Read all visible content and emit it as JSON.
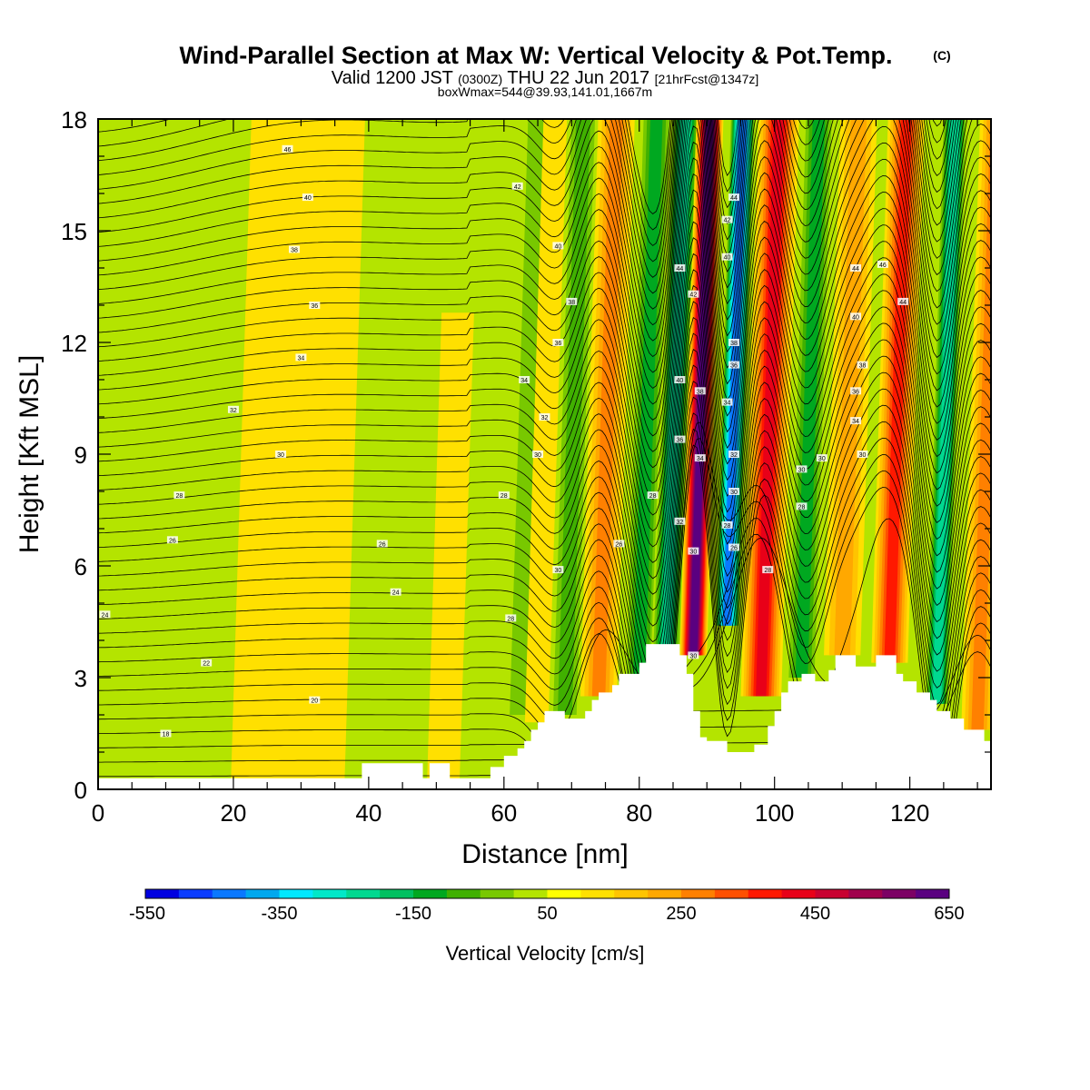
{
  "chart_data": {
    "type": "heatmap",
    "title": "Wind-Parallel Section at Max W: Vertical Velocity & Pot.Temp.",
    "title_mark": "(C)",
    "subtitle": {
      "valid_prefix": "Valid 1200 JST",
      "utc": "(0300Z)",
      "date": "THU 22 Jun 2017",
      "forecast": "[21hrFcst@1347z]"
    },
    "info_line": "boxWmax=544@39.93,141.01,1667m",
    "xlabel": "Distance [nm]",
    "ylabel": "Height [Kft MSL]",
    "xlim": [
      0,
      132
    ],
    "ylim": [
      0,
      18
    ],
    "x_ticks": [
      "0",
      "20",
      "40",
      "60",
      "80",
      "100",
      "120"
    ],
    "y_ticks": [
      "0",
      "3",
      "6",
      "9",
      "12",
      "15",
      "18"
    ],
    "colorbar": {
      "label": "Vertical Velocity [cm/s]",
      "tick_labels": [
        "-550",
        "-350",
        "-150",
        "50",
        "250",
        "450",
        "650"
      ],
      "colors": [
        "#0000e0",
        "#0a3cff",
        "#0a78ff",
        "#00a8ee",
        "#00e8ff",
        "#00e8c8",
        "#00d890",
        "#00c060",
        "#00a820",
        "#40b000",
        "#78c800",
        "#b4e400",
        "#ffff00",
        "#ffe000",
        "#ffc400",
        "#ffa800",
        "#ff8000",
        "#ff5000",
        "#ff1800",
        "#e80018",
        "#c80030",
        "#a0004c",
        "#7c0064",
        "#5a0080"
      ]
    },
    "ground_profile": [
      [
        0,
        0.3
      ],
      [
        1,
        0.3
      ],
      [
        2,
        0.3
      ],
      [
        39,
        0.3
      ],
      [
        39,
        0.7
      ],
      [
        40,
        0.7
      ],
      [
        48,
        0.7
      ],
      [
        48,
        0.3
      ],
      [
        49,
        0.3
      ],
      [
        49,
        0.7
      ],
      [
        52,
        0.7
      ],
      [
        52,
        0.3
      ],
      [
        58,
        0.3
      ],
      [
        58,
        0.6
      ],
      [
        60,
        0.6
      ],
      [
        60,
        0.9
      ],
      [
        62,
        0.9
      ],
      [
        62,
        1.1
      ],
      [
        63,
        1.1
      ],
      [
        63,
        1.3
      ],
      [
        64,
        1.3
      ],
      [
        64,
        1.6
      ],
      [
        65,
        1.6
      ],
      [
        65,
        1.8
      ],
      [
        66,
        1.8
      ],
      [
        66,
        2.1
      ],
      [
        69,
        2.1
      ],
      [
        69,
        1.9
      ],
      [
        72,
        1.9
      ],
      [
        72,
        2.1
      ],
      [
        73,
        2.1
      ],
      [
        73,
        2.4
      ],
      [
        74,
        2.4
      ],
      [
        74,
        2.6
      ],
      [
        76,
        2.6
      ],
      [
        76,
        2.8
      ],
      [
        77,
        2.8
      ],
      [
        77,
        3.1
      ],
      [
        80,
        3.1
      ],
      [
        80,
        3.4
      ],
      [
        81,
        3.4
      ],
      [
        81,
        3.9
      ],
      [
        86,
        3.9
      ],
      [
        86,
        3.6
      ],
      [
        87,
        3.6
      ],
      [
        87,
        3.1
      ],
      [
        88,
        3.1
      ],
      [
        88,
        2.1
      ],
      [
        89,
        2.1
      ],
      [
        89,
        1.4
      ],
      [
        90,
        1.4
      ],
      [
        90,
        1.3
      ],
      [
        93,
        1.3
      ],
      [
        93,
        1.0
      ],
      [
        97,
        1.0
      ],
      [
        97,
        1.2
      ],
      [
        99,
        1.2
      ],
      [
        99,
        1.7
      ],
      [
        100,
        1.7
      ],
      [
        100,
        2.1
      ],
      [
        101,
        2.1
      ],
      [
        101,
        2.6
      ],
      [
        102,
        2.6
      ],
      [
        102,
        2.9
      ],
      [
        104,
        2.9
      ],
      [
        104,
        3.1
      ],
      [
        106,
        3.1
      ],
      [
        106,
        2.9
      ],
      [
        108,
        2.9
      ],
      [
        108,
        3.2
      ],
      [
        109,
        3.2
      ],
      [
        109,
        3.6
      ],
      [
        112,
        3.6
      ],
      [
        112,
        3.3
      ],
      [
        115,
        3.3
      ],
      [
        115,
        3.6
      ],
      [
        118,
        3.6
      ],
      [
        118,
        3.1
      ],
      [
        119,
        3.1
      ],
      [
        119,
        2.9
      ],
      [
        121,
        2.9
      ],
      [
        121,
        2.6
      ],
      [
        123,
        2.6
      ],
      [
        123,
        2.4
      ],
      [
        124,
        2.4
      ],
      [
        124,
        2.1
      ],
      [
        126,
        2.1
      ],
      [
        126,
        1.9
      ],
      [
        128,
        1.9
      ],
      [
        128,
        1.6
      ],
      [
        131,
        1.6
      ],
      [
        131,
        1.3
      ],
      [
        132,
        1.3
      ]
    ],
    "vertical_velocity_features": [
      {
        "x": 28,
        "w": 8,
        "value": 20,
        "bottom": 0,
        "top": 18
      },
      {
        "x": 41,
        "w": 3,
        "value": -40,
        "bottom": 0,
        "top": 18
      },
      {
        "x": 51,
        "w": 2,
        "value": 40,
        "bottom": 0,
        "top": 12.8
      },
      {
        "x": 62,
        "w": 1.5,
        "value": -100,
        "bottom": 2,
        "top": 18
      },
      {
        "x": 65,
        "w": 1.5,
        "value": 70,
        "bottom": 1.8,
        "top": 18
      },
      {
        "x": 69,
        "w": 2,
        "value": -140,
        "bottom": 2,
        "top": 18
      },
      {
        "x": 74,
        "w": 2.3,
        "value": 180,
        "bottom": 2.5,
        "top": 18
      },
      {
        "x": 80,
        "w": 2,
        "value": -190,
        "bottom": 3,
        "top": 18
      },
      {
        "x": 84,
        "w": 1.8,
        "value": -300,
        "bottom": 3.8,
        "top": 18,
        "slope": 0.2
      },
      {
        "x": 88,
        "w": 1.6,
        "value": 544,
        "bottom": 3.6,
        "top": 18
      },
      {
        "x": 93,
        "w": 1.5,
        "value": -520,
        "bottom": 4.4,
        "top": 18
      },
      {
        "x": 98,
        "w": 2.6,
        "value": 350,
        "bottom": 2.5,
        "top": 18
      },
      {
        "x": 104,
        "w": 2,
        "value": -200,
        "bottom": 3,
        "top": 18
      },
      {
        "x": 110,
        "w": 2.3,
        "value": 160,
        "bottom": 3.6,
        "top": 18
      },
      {
        "x": 117,
        "w": 2.3,
        "value": 320,
        "bottom": 3.4,
        "top": 18
      },
      {
        "x": 124,
        "w": 1.5,
        "value": -300,
        "bottom": 2.3,
        "top": 18
      },
      {
        "x": 130,
        "w": 2,
        "value": 200,
        "bottom": 1.6,
        "top": 18
      }
    ],
    "isentrope_labels": [
      {
        "x": 28,
        "y": 17.2,
        "text": "46"
      },
      {
        "x": 31,
        "y": 15.9,
        "text": "40"
      },
      {
        "x": 29,
        "y": 14.5,
        "text": "38"
      },
      {
        "x": 32,
        "y": 13.0,
        "text": "36"
      },
      {
        "x": 30,
        "y": 11.6,
        "text": "34"
      },
      {
        "x": 20,
        "y": 10.2,
        "text": "32"
      },
      {
        "x": 27,
        "y": 9.0,
        "text": "30"
      },
      {
        "x": 12,
        "y": 7.9,
        "text": "28"
      },
      {
        "x": 11,
        "y": 6.7,
        "text": "26"
      },
      {
        "x": 42,
        "y": 6.6,
        "text": "26"
      },
      {
        "x": 44,
        "y": 5.3,
        "text": "24"
      },
      {
        "x": 1,
        "y": 4.7,
        "text": "24"
      },
      {
        "x": 16,
        "y": 3.4,
        "text": "22"
      },
      {
        "x": 32,
        "y": 2.4,
        "text": "20"
      },
      {
        "x": 10,
        "y": 1.5,
        "text": "18"
      },
      {
        "x": 62,
        "y": 16.2,
        "text": "42"
      },
      {
        "x": 68,
        "y": 14.6,
        "text": "40"
      },
      {
        "x": 70,
        "y": 13.1,
        "text": "38"
      },
      {
        "x": 68,
        "y": 12.0,
        "text": "36"
      },
      {
        "x": 63,
        "y": 11.0,
        "text": "34"
      },
      {
        "x": 66,
        "y": 10.0,
        "text": "32"
      },
      {
        "x": 65,
        "y": 9.0,
        "text": "30"
      },
      {
        "x": 60,
        "y": 7.9,
        "text": "28"
      },
      {
        "x": 61,
        "y": 4.6,
        "text": "28"
      },
      {
        "x": 68,
        "y": 5.9,
        "text": "30"
      },
      {
        "x": 77,
        "y": 6.6,
        "text": "26"
      },
      {
        "x": 82,
        "y": 7.9,
        "text": "28"
      },
      {
        "x": 86,
        "y": 14.0,
        "text": "44"
      },
      {
        "x": 88,
        "y": 13.3,
        "text": "42"
      },
      {
        "x": 86,
        "y": 11.0,
        "text": "40"
      },
      {
        "x": 86,
        "y": 9.4,
        "text": "36"
      },
      {
        "x": 86,
        "y": 7.2,
        "text": "32"
      },
      {
        "x": 88,
        "y": 3.6,
        "text": "30"
      },
      {
        "x": 94,
        "y": 15.9,
        "text": "44"
      },
      {
        "x": 93,
        "y": 15.3,
        "text": "42"
      },
      {
        "x": 93,
        "y": 14.3,
        "text": "40"
      },
      {
        "x": 94,
        "y": 12.0,
        "text": "38"
      },
      {
        "x": 94,
        "y": 11.4,
        "text": "36"
      },
      {
        "x": 93,
        "y": 10.4,
        "text": "34"
      },
      {
        "x": 94,
        "y": 9.0,
        "text": "32"
      },
      {
        "x": 94,
        "y": 8.0,
        "text": "30"
      },
      {
        "x": 93,
        "y": 7.1,
        "text": "28"
      },
      {
        "x": 94,
        "y": 6.5,
        "text": "26"
      },
      {
        "x": 89,
        "y": 10.7,
        "text": "38"
      },
      {
        "x": 89,
        "y": 8.9,
        "text": "34"
      },
      {
        "x": 88,
        "y": 6.4,
        "text": "30"
      },
      {
        "x": 99,
        "y": 5.9,
        "text": "28"
      },
      {
        "x": 112,
        "y": 14.0,
        "text": "44"
      },
      {
        "x": 116,
        "y": 14.1,
        "text": "46"
      },
      {
        "x": 112,
        "y": 12.7,
        "text": "40"
      },
      {
        "x": 119,
        "y": 13.1,
        "text": "44"
      },
      {
        "x": 113,
        "y": 11.4,
        "text": "38"
      },
      {
        "x": 112,
        "y": 10.7,
        "text": "36"
      },
      {
        "x": 112,
        "y": 9.9,
        "text": "34"
      },
      {
        "x": 113,
        "y": 9.0,
        "text": "30"
      },
      {
        "x": 107,
        "y": 8.9,
        "text": "30"
      },
      {
        "x": 104,
        "y": 8.6,
        "text": "30"
      },
      {
        "x": 104,
        "y": 7.6,
        "text": "28"
      }
    ]
  }
}
